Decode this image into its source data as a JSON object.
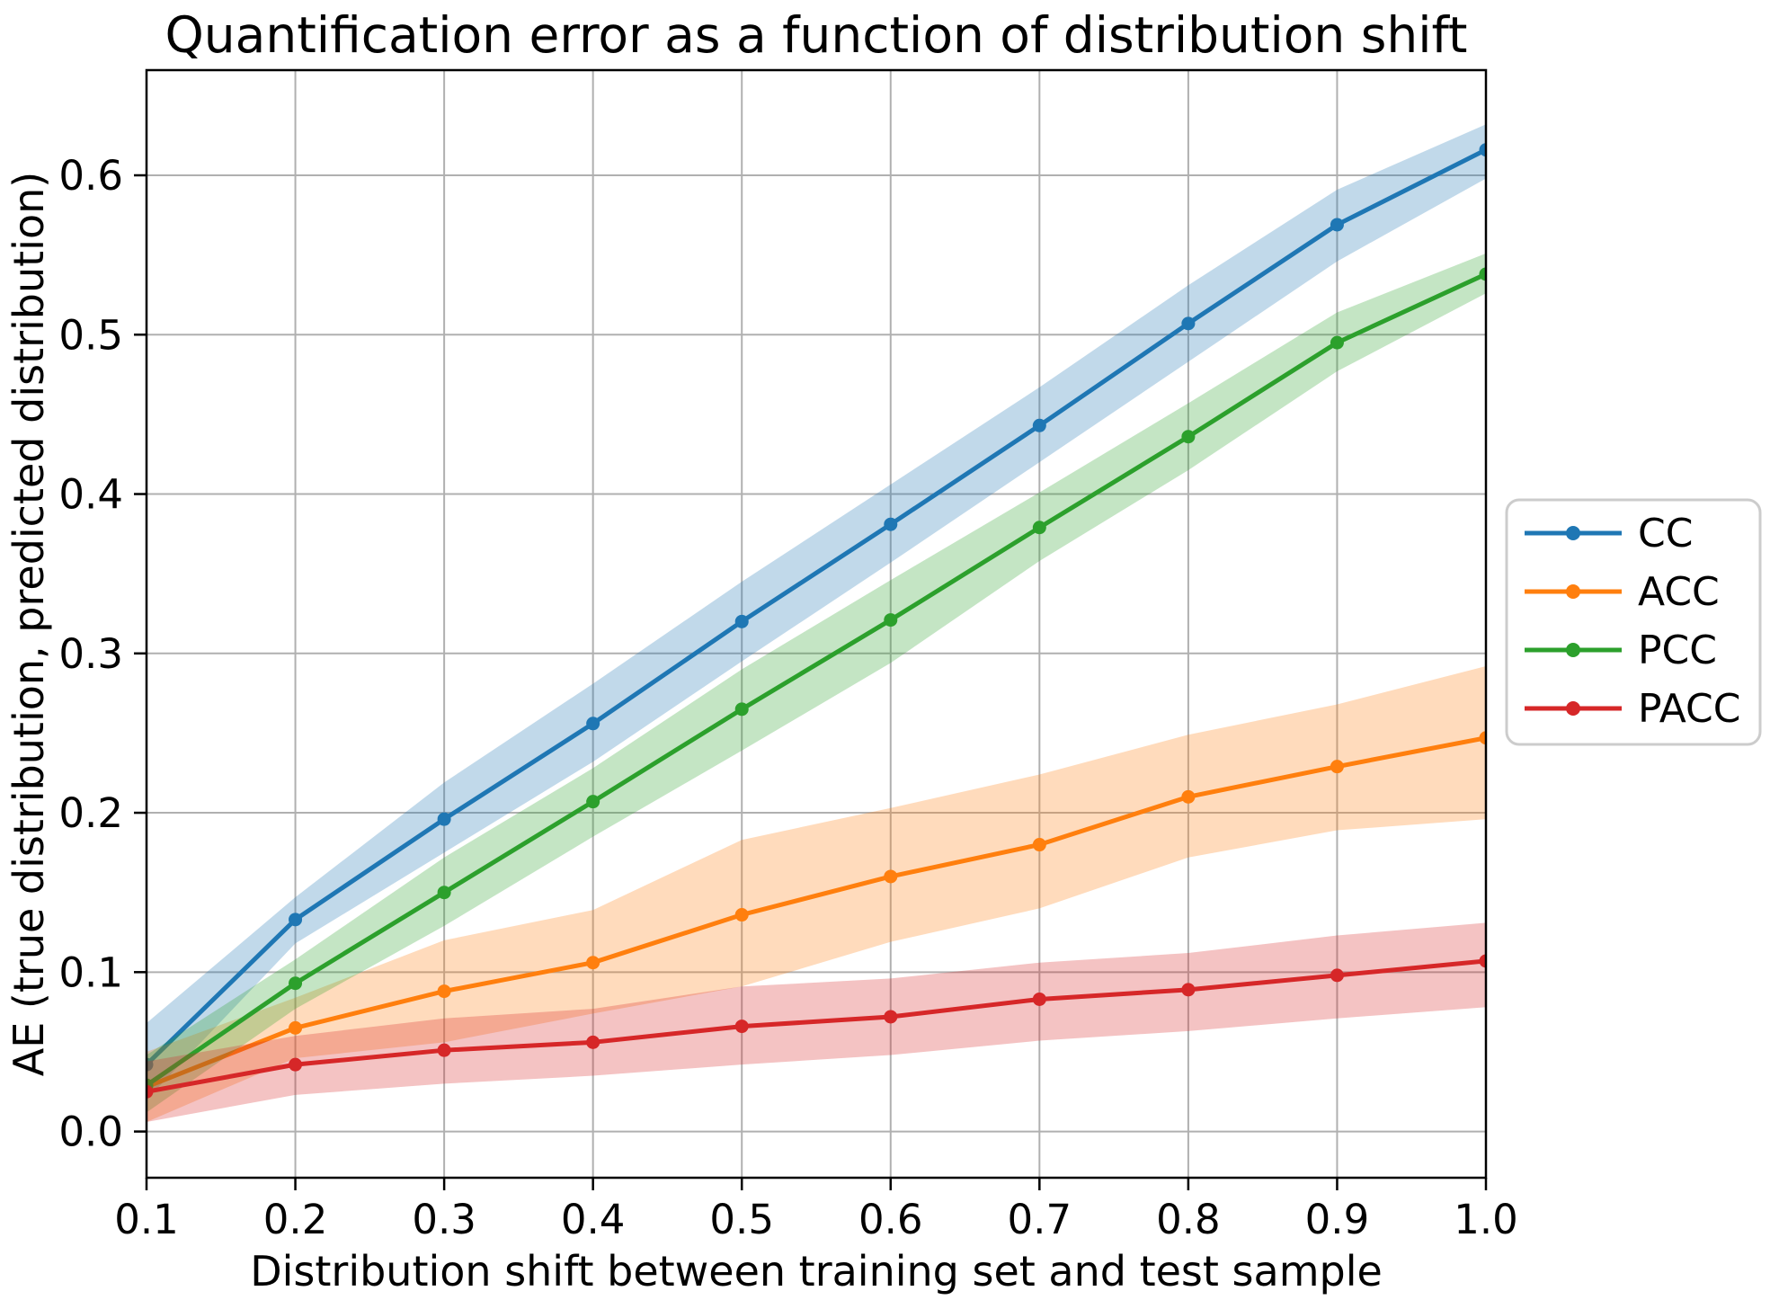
{
  "chart_data": {
    "type": "line",
    "title": "Quantification error as a function of distribution shift",
    "xlabel": "Distribution shift between training set and test sample",
    "ylabel": "AE (true distribution, predicted distribution)",
    "x": [
      0.1,
      0.2,
      0.3,
      0.4,
      0.5,
      0.6,
      0.7,
      0.8,
      0.9,
      1.0
    ],
    "xtick_labels": [
      "0.1",
      "0.2",
      "0.3",
      "0.4",
      "0.5",
      "0.6",
      "0.7",
      "0.8",
      "0.9",
      "1.0"
    ],
    "ytick_values": [
      0.0,
      0.1,
      0.2,
      0.3,
      0.4,
      0.5,
      0.6
    ],
    "ytick_labels": [
      "0.0",
      "0.1",
      "0.2",
      "0.3",
      "0.4",
      "0.5",
      "0.6"
    ],
    "xlim": [
      0.1,
      1.0
    ],
    "ylim": [
      -0.029,
      0.666
    ],
    "grid": true,
    "grid_color": "#b0b0b0",
    "spine_color": "#000000",
    "band_opacity": 0.28,
    "legend_position": "right-outside",
    "series": [
      {
        "name": "CC",
        "color": "#1f77b4",
        "values": [
          0.042,
          0.133,
          0.196,
          0.256,
          0.32,
          0.381,
          0.443,
          0.507,
          0.569,
          0.616
        ],
        "band_lower": [
          0.02,
          0.118,
          0.175,
          0.232,
          0.295,
          0.357,
          0.42,
          0.483,
          0.546,
          0.598
        ],
        "band_upper": [
          0.068,
          0.147,
          0.219,
          0.281,
          0.345,
          0.406,
          0.467,
          0.531,
          0.591,
          0.632
        ]
      },
      {
        "name": "ACC",
        "color": "#ff7f0e",
        "values": [
          0.028,
          0.065,
          0.088,
          0.106,
          0.136,
          0.16,
          0.18,
          0.21,
          0.229,
          0.247
        ],
        "band_lower": [
          0.006,
          0.046,
          0.056,
          0.074,
          0.091,
          0.119,
          0.14,
          0.172,
          0.189,
          0.196
        ],
        "band_upper": [
          0.05,
          0.084,
          0.12,
          0.139,
          0.183,
          0.203,
          0.224,
          0.249,
          0.268,
          0.292
        ]
      },
      {
        "name": "PCC",
        "color": "#2ca02c",
        "values": [
          0.029,
          0.093,
          0.15,
          0.207,
          0.265,
          0.321,
          0.379,
          0.436,
          0.495,
          0.538
        ],
        "band_lower": [
          0.012,
          0.077,
          0.129,
          0.185,
          0.239,
          0.294,
          0.358,
          0.415,
          0.477,
          0.526
        ],
        "band_upper": [
          0.048,
          0.108,
          0.172,
          0.228,
          0.29,
          0.346,
          0.401,
          0.457,
          0.514,
          0.551
        ]
      },
      {
        "name": "PACC",
        "color": "#d62728",
        "values": [
          0.025,
          0.042,
          0.051,
          0.056,
          0.066,
          0.072,
          0.083,
          0.089,
          0.098,
          0.107
        ],
        "band_lower": [
          0.006,
          0.023,
          0.03,
          0.035,
          0.042,
          0.048,
          0.057,
          0.063,
          0.071,
          0.078
        ],
        "band_upper": [
          0.044,
          0.06,
          0.071,
          0.077,
          0.091,
          0.096,
          0.106,
          0.112,
          0.123,
          0.131
        ]
      }
    ]
  }
}
